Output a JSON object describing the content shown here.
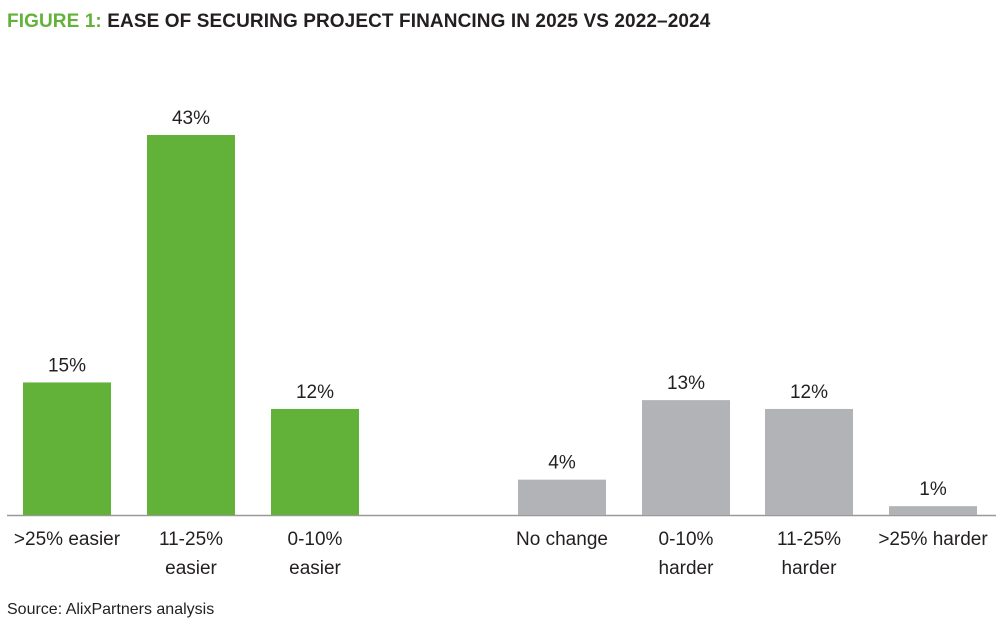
{
  "title": {
    "prefix": "FIGURE 1:",
    "text": "EASE OF SECURING PROJECT FINANCING IN 2025 VS 2022–2024"
  },
  "source": "Source: AlixPartners analysis",
  "colors": {
    "easier": "#62b23a",
    "harder": "#b2b3b6",
    "title_prefix": "#62b23a",
    "text": "#231f20",
    "axis": "#999999"
  },
  "chart_data": {
    "type": "bar",
    "categories": [
      ">25% easier",
      "11-25% easier",
      "0-10% easier",
      "No change",
      "0-10% harder",
      "11-25% harder",
      ">25% harder"
    ],
    "category_lines": [
      [
        ">25% easier"
      ],
      [
        "11-25%",
        "easier"
      ],
      [
        "0-10%",
        "easier"
      ],
      [
        "No change"
      ],
      [
        "0-10%",
        "harder"
      ],
      [
        "11-25%",
        "harder"
      ],
      [
        ">25% harder"
      ]
    ],
    "values": [
      15,
      43,
      12,
      4,
      13,
      12,
      1
    ],
    "data_labels": [
      "15%",
      "43%",
      "12%",
      "4%",
      "13%",
      "12%",
      "1%"
    ],
    "groups": [
      "easier",
      "easier",
      "easier",
      "harder",
      "harder",
      "harder",
      "harder"
    ],
    "unit": "%",
    "ylim": [
      0,
      43
    ],
    "grid": false,
    "legend": "none"
  }
}
